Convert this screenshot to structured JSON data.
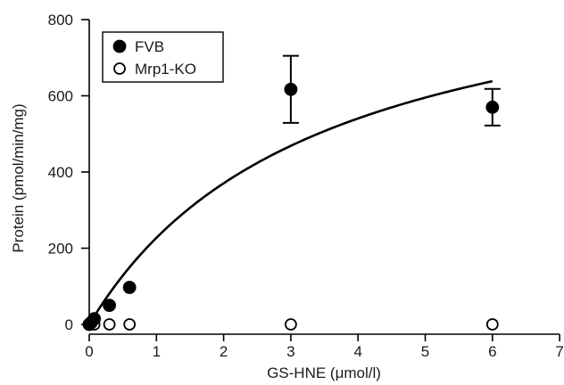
{
  "chart_data": {
    "type": "scatter",
    "xlabel": "GS-HNE (μmol/l)",
    "ylabel": "Protein (pmol/min/mg)",
    "xlim": [
      0,
      7
    ],
    "ylim": [
      0,
      800
    ],
    "xticks": [
      0,
      1,
      2,
      3,
      4,
      5,
      6,
      7
    ],
    "yticks": [
      0,
      200,
      400,
      600,
      800
    ],
    "legend": "top-left",
    "series": [
      {
        "name": "FVB",
        "marker": "filled-circle",
        "color": "#000000",
        "x": [
          0,
          0.03,
          0.075,
          0.3,
          0.6,
          3,
          6
        ],
        "y": [
          0,
          5,
          15,
          50,
          97,
          617,
          570
        ],
        "error": [
          0,
          0,
          0,
          0,
          0,
          88,
          48
        ]
      },
      {
        "name": "Mrp1-KO",
        "marker": "open-circle",
        "color": "#000000",
        "x": [
          0,
          0.03,
          0.075,
          0.3,
          0.6,
          3,
          6
        ],
        "y": [
          0,
          0,
          0,
          0,
          0,
          0,
          0
        ]
      }
    ],
    "fit_curve": {
      "type": "michaelis-menten",
      "vmax": 1000,
      "km": 3.4,
      "series": "FVB"
    }
  }
}
